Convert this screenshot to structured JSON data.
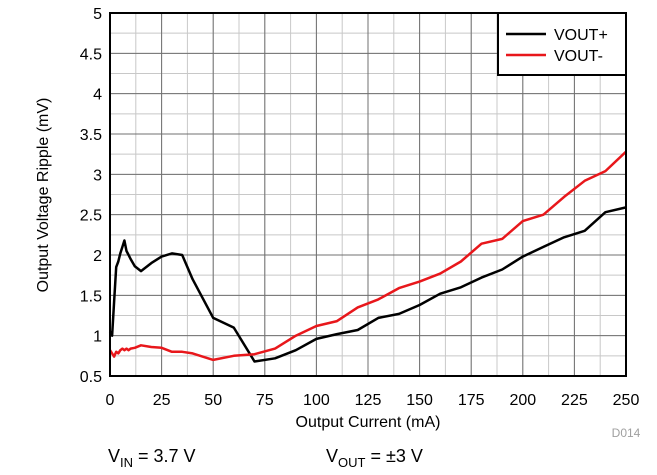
{
  "chart_data": {
    "type": "line",
    "title": "",
    "xlabel": "Output Current (mA)",
    "ylabel": "Output Voltage Ripple (mV)",
    "xlim": [
      0,
      250
    ],
    "ylim": [
      0.5,
      5
    ],
    "xticks": [
      0,
      25,
      50,
      75,
      100,
      125,
      150,
      175,
      200,
      225,
      250
    ],
    "yticks": [
      0.5,
      1,
      1.5,
      2,
      2.5,
      3,
      3.5,
      4,
      4.5,
      5
    ],
    "xtick_labels": [
      "0",
      "25",
      "50",
      "75",
      "100",
      "125",
      "150",
      "175",
      "200",
      "225",
      "250"
    ],
    "ytick_labels": [
      "0.5",
      "1",
      "1.5",
      "2",
      "2.5",
      "3",
      "3.5",
      "4",
      "4.5",
      "5"
    ],
    "minor_x_step": 12.5,
    "minor_y_step": 0.25,
    "grid": true,
    "legend_position": "top-right",
    "series": [
      {
        "name": "VOUT+",
        "color": "#000000",
        "x": [
          0,
          1,
          2,
          3,
          4,
          5,
          6,
          7,
          8,
          9,
          10,
          12,
          15,
          20,
          25,
          30,
          35,
          40,
          50,
          60,
          70,
          80,
          90,
          100,
          110,
          120,
          130,
          140,
          150,
          160,
          170,
          180,
          190,
          200,
          210,
          220,
          230,
          240,
          250
        ],
        "y": [
          1.05,
          1.0,
          1.42,
          1.85,
          1.92,
          2.02,
          2.1,
          2.18,
          2.05,
          2.0,
          1.95,
          1.86,
          1.8,
          1.9,
          1.98,
          2.02,
          2.0,
          1.7,
          1.22,
          1.1,
          0.68,
          0.72,
          0.82,
          0.96,
          1.02,
          1.07,
          1.22,
          1.27,
          1.38,
          1.52,
          1.6,
          1.72,
          1.82,
          1.98,
          2.1,
          2.22,
          2.3,
          2.53,
          2.59
        ]
      },
      {
        "name": "VOUT-",
        "color": "#e8171b",
        "x": [
          0,
          1,
          2,
          3,
          4,
          5,
          6,
          7,
          8,
          9,
          10,
          12,
          15,
          20,
          25,
          30,
          35,
          40,
          50,
          60,
          70,
          80,
          90,
          100,
          110,
          120,
          130,
          140,
          150,
          160,
          170,
          180,
          190,
          200,
          210,
          220,
          230,
          240,
          250
        ],
        "y": [
          0.82,
          0.78,
          0.74,
          0.8,
          0.78,
          0.82,
          0.84,
          0.82,
          0.84,
          0.82,
          0.84,
          0.85,
          0.88,
          0.86,
          0.85,
          0.8,
          0.8,
          0.78,
          0.7,
          0.75,
          0.77,
          0.84,
          1.0,
          1.12,
          1.18,
          1.35,
          1.45,
          1.59,
          1.67,
          1.77,
          1.92,
          2.14,
          2.2,
          2.42,
          2.5,
          2.72,
          2.92,
          3.04,
          3.28
        ]
      }
    ]
  },
  "conditions": {
    "vin_main": "V",
    "vin_sub": "IN",
    "vin_value": " = 3.7 V",
    "vout_main": "V",
    "vout_sub": "OUT",
    "vout_value": " = ±3 V"
  },
  "figure_id": "D014"
}
